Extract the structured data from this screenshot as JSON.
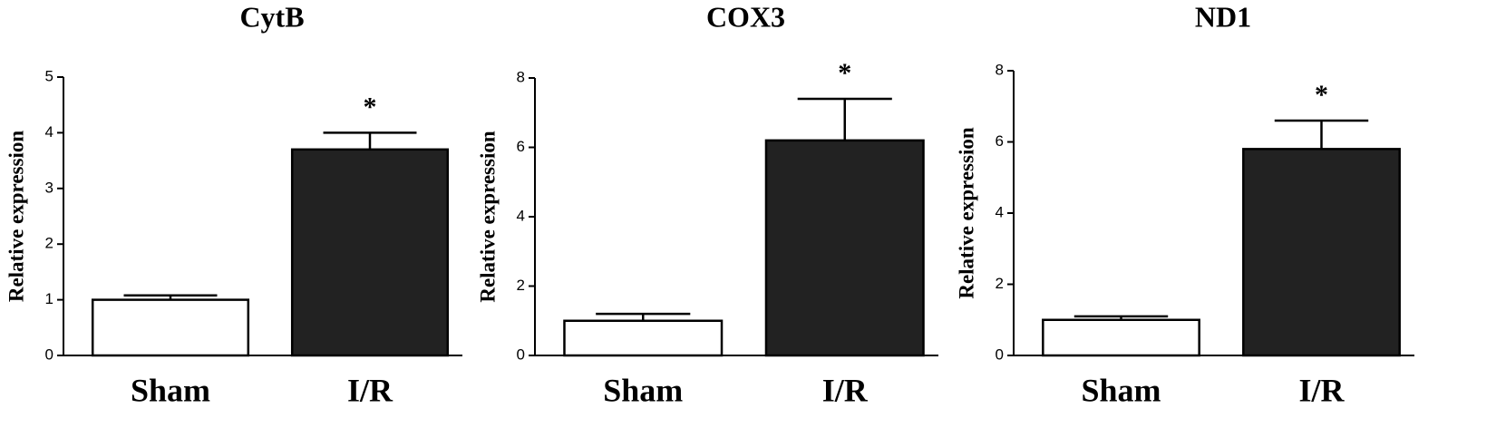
{
  "chart_data": [
    {
      "type": "bar",
      "title": "CytB",
      "ylabel": "Relative expression",
      "categories": [
        "Sham",
        "I/R"
      ],
      "values": [
        1.0,
        3.7
      ],
      "errors": [
        0.08,
        0.3
      ],
      "colors": [
        "#ffffff",
        "#222222"
      ],
      "significance": [
        null,
        "*"
      ],
      "ylim": [
        0,
        5
      ],
      "yticks": [
        0,
        1,
        2,
        3,
        4,
        5
      ]
    },
    {
      "type": "bar",
      "title": "COX3",
      "ylabel": "Relative expression",
      "categories": [
        "Sham",
        "I/R"
      ],
      "values": [
        1.0,
        6.2
      ],
      "errors": [
        0.2,
        1.2
      ],
      "colors": [
        "#ffffff",
        "#222222"
      ],
      "significance": [
        null,
        "*"
      ],
      "ylim": [
        0,
        8
      ],
      "yticks": [
        0,
        2,
        4,
        6,
        8
      ]
    },
    {
      "type": "bar",
      "title": "ND1",
      "ylabel": "Relative expression",
      "categories": [
        "Sham",
        "I/R"
      ],
      "values": [
        1.0,
        5.8
      ],
      "errors": [
        0.1,
        0.8
      ],
      "colors": [
        "#ffffff",
        "#222222"
      ],
      "significance": [
        null,
        "*"
      ],
      "ylim": [
        0,
        8
      ],
      "yticks": [
        0,
        2,
        4,
        6,
        8
      ]
    }
  ]
}
